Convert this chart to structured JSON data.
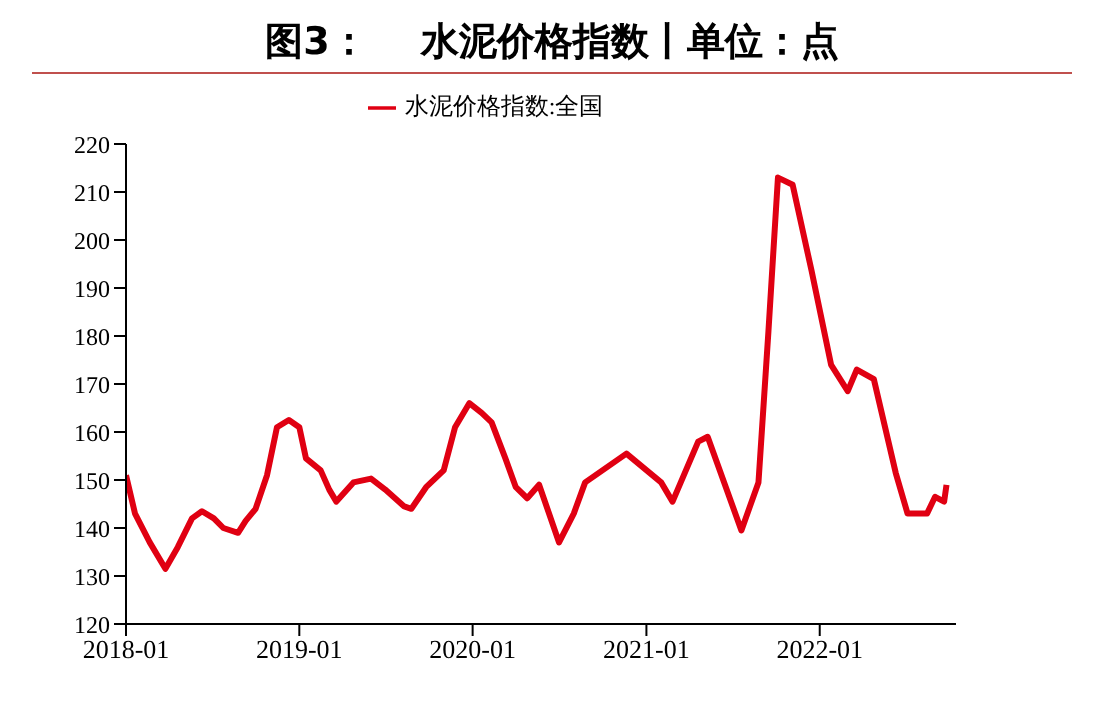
{
  "chart_data": {
    "type": "line",
    "title": "图3：    水泥价格指数丨单位：点",
    "x": [
      "2018-01-01",
      "2018-01-20",
      "2018-02-20",
      "2018-03-25",
      "2018-04-20",
      "2018-05-20",
      "2018-06-10",
      "2018-07-05",
      "2018-07-25",
      "2018-08-25",
      "2018-09-10",
      "2018-10-01",
      "2018-10-25",
      "2018-11-15",
      "2018-12-10",
      "2019-01-01",
      "2019-01-15",
      "2019-02-15",
      "2019-03-05",
      "2019-03-20",
      "2019-04-25",
      "2019-06-01",
      "2019-07-01",
      "2019-08-10",
      "2019-08-25",
      "2019-09-25",
      "2019-11-01",
      "2019-11-25",
      "2019-12-25",
      "2020-01-20",
      "2020-02-10",
      "2020-03-10",
      "2020-04-01",
      "2020-04-25",
      "2020-05-20",
      "2020-07-01",
      "2020-08-01",
      "2020-08-25",
      "2020-11-20",
      "2021-02-01",
      "2021-02-25",
      "2021-04-20",
      "2021-05-10",
      "2021-07-20",
      "2021-08-25",
      "2021-09-15",
      "2021-10-05",
      "2021-11-05",
      "2021-12-15",
      "2022-01-25",
      "2022-03-01",
      "2022-03-20",
      "2022-04-25",
      "2022-06-10",
      "2022-07-05",
      "2022-08-15",
      "2022-09-01",
      "2022-09-20",
      "2022-09-25"
    ],
    "series": [
      {
        "name": "水泥价格指数:全国",
        "color": "#e00012",
        "values": [
          151,
          143,
          137,
          131.5,
          136,
          142,
          143.5,
          142,
          140,
          139,
          141.5,
          144,
          151,
          161,
          162.5,
          161,
          154.5,
          152,
          148,
          145.5,
          149.5,
          150.3,
          148,
          144.5,
          144,
          148.5,
          152,
          161,
          166,
          164,
          162,
          154.5,
          148.5,
          146.2,
          149,
          137,
          143,
          149.5,
          155.5,
          149.5,
          145.5,
          158,
          159,
          139.5,
          149.5,
          181,
          213,
          211.5,
          193.5,
          174,
          168.5,
          173,
          171,
          151.5,
          143,
          143,
          146.5,
          145.5,
          149
        ]
      }
    ],
    "xlim": [
      "2018-01-01",
      "2022-10-15"
    ],
    "xticks": [
      {
        "value": "2018-01-01",
        "label": "2018-01"
      },
      {
        "value": "2019-01-01",
        "label": "2019-01"
      },
      {
        "value": "2020-01-01",
        "label": "2020-01"
      },
      {
        "value": "2021-01-01",
        "label": "2021-01"
      },
      {
        "value": "2022-01-01",
        "label": "2022-01"
      }
    ],
    "ylim": [
      120,
      220
    ],
    "yticks": [
      120,
      130,
      140,
      150,
      160,
      170,
      180,
      190,
      200,
      210,
      220
    ],
    "legend": "top",
    "grid": false,
    "marker": "none",
    "line_style": "solid"
  }
}
